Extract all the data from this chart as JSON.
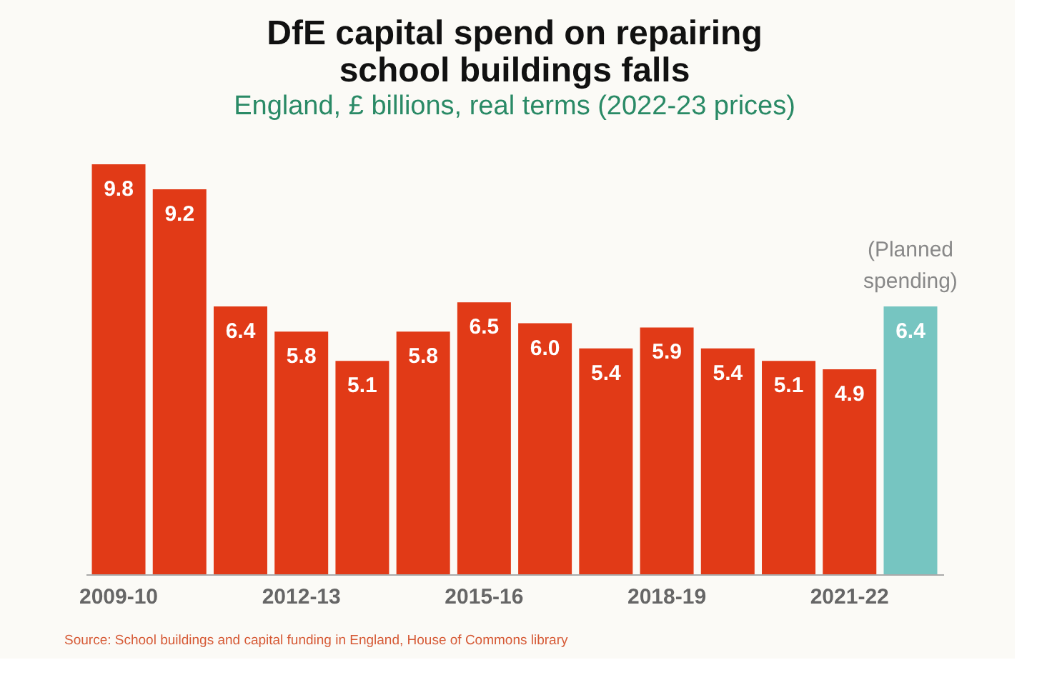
{
  "chart_data": {
    "type": "bar",
    "title": "DfE capital spend on repairing\nschool buildings falls",
    "subtitle": "England, £ billions, real terms (2022-23 prices)",
    "categories": [
      "2009-10",
      null,
      null,
      "2012-13",
      null,
      null,
      "2015-16",
      null,
      null,
      "2018-19",
      null,
      null,
      "2021-22",
      null
    ],
    "values": [
      9.8,
      9.2,
      6.4,
      5.8,
      5.1,
      5.8,
      6.5,
      6.0,
      5.4,
      5.9,
      5.4,
      5.1,
      4.9,
      6.4
    ],
    "value_labels": [
      "9.8",
      "9.2",
      "6.4",
      "5.8",
      "5.1",
      "5.8",
      "6.5",
      "6.0",
      "5.4",
      "5.9",
      "5.4",
      "5.1",
      "4.9",
      "6.4"
    ],
    "colors": [
      "#e13a17",
      "#e13a17",
      "#e13a17",
      "#e13a17",
      "#e13a17",
      "#e13a17",
      "#e13a17",
      "#e13a17",
      "#e13a17",
      "#e13a17",
      "#e13a17",
      "#e13a17",
      "#e13a17",
      "#76c5c1"
    ],
    "annotations": [
      "(Planned spending)",
      "Source: School buildings and capital funding in England, House of Commons library"
    ]
  }
}
